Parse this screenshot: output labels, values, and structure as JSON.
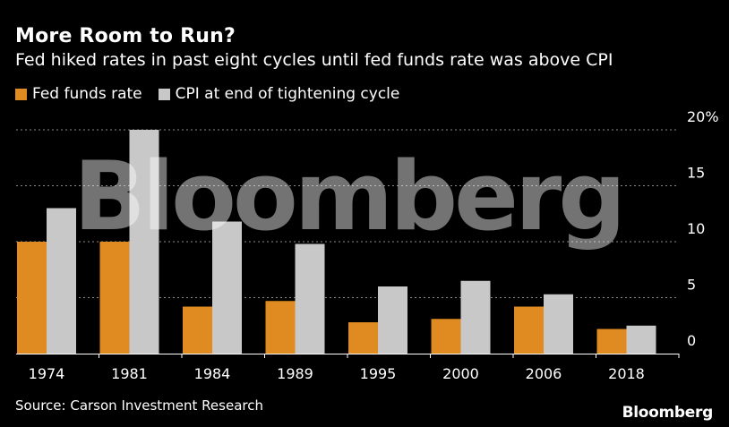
{
  "title": "More Room to Run?",
  "subtitle": "Fed hiked rates in past eight cycles until fed funds rate was above CPI",
  "source": "Source: Carson Investment Research",
  "brand": "Bloomberg",
  "watermark": "Bloomberg",
  "colors": {
    "fed": "#e08a22",
    "cpi": "#c8c8c8",
    "grid": "#8a8a8a",
    "background": "#000000"
  },
  "chart_data": {
    "type": "bar",
    "categories": [
      "1974",
      "1981",
      "1984",
      "1989",
      "1995",
      "2000",
      "2006",
      "2018"
    ],
    "series": [
      {
        "name": "Fed funds rate",
        "values": [
          10.0,
          10.0,
          4.2,
          4.7,
          2.8,
          3.1,
          4.2,
          2.2
        ]
      },
      {
        "name": "CPI at end of tightening cycle",
        "values": [
          13.0,
          20.0,
          11.8,
          9.8,
          6.0,
          6.5,
          5.3,
          2.5
        ]
      }
    ],
    "yticks": [
      {
        "value": 0,
        "label": "0"
      },
      {
        "value": 5,
        "label": "5"
      },
      {
        "value": 10,
        "label": "10"
      },
      {
        "value": 15,
        "label": "15"
      },
      {
        "value": 20,
        "label": "20%"
      }
    ],
    "ylim": [
      0,
      20
    ],
    "grid": true,
    "legend": "top-left",
    "xlabel": "",
    "ylabel": ""
  }
}
